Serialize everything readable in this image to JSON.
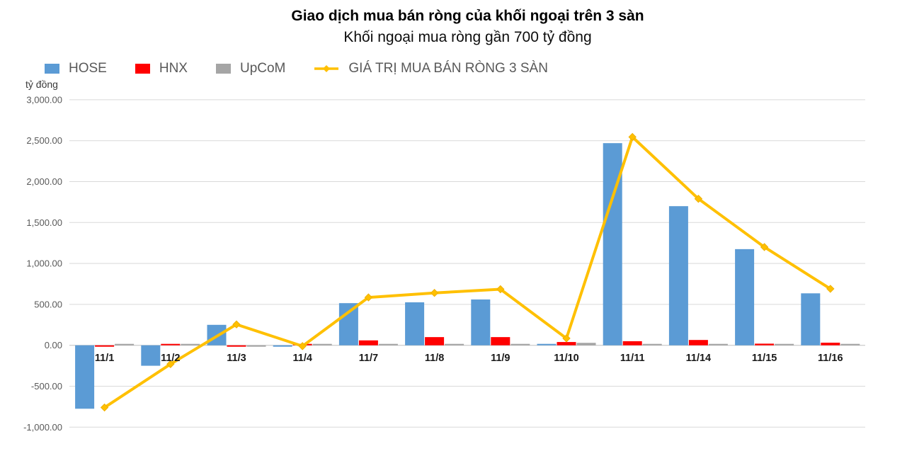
{
  "header": {
    "title": "Giao dịch mua bán ròng của khối ngoại trên 3 sàn",
    "subtitle": "Khối ngoại mua ròng gần 700 tỷ đồng"
  },
  "legend": [
    {
      "id": "hose",
      "label": "HOSE",
      "color": "#5B9BD5",
      "marker": "square"
    },
    {
      "id": "hnx",
      "label": "HNX",
      "color": "#FF0000",
      "marker": "square"
    },
    {
      "id": "upcom",
      "label": "UpCoM",
      "color": "#A5A5A5",
      "marker": "square"
    },
    {
      "id": "net-line",
      "label": "GIÁ TRỊ MUA BÁN RÒNG 3 SÀN",
      "color": "#FFC000",
      "marker": "line"
    }
  ],
  "chart_data": {
    "type": "bar+line",
    "title": "Giao dịch mua bán ròng của khối ngoại trên 3 sàn",
    "subtitle": "Khối ngoại mua ròng gần 700 tỷ đồng",
    "ylabel": "tỷ đồng",
    "categories": [
      "11/1",
      "11/2",
      "11/3",
      "11/4",
      "11/7",
      "11/8",
      "11/9",
      "11/10",
      "11/11",
      "11/14",
      "11/15",
      "11/16"
    ],
    "series": [
      {
        "name": "HOSE",
        "type": "bar",
        "color": "#5B9BD5",
        "values": [
          -775,
          -250,
          250,
          -10,
          515,
          525,
          560,
          15,
          2470,
          1700,
          1175,
          635
        ]
      },
      {
        "name": "HNX",
        "type": "bar",
        "color": "#FF0000",
        "values": [
          -5,
          5,
          -10,
          5,
          60,
          100,
          100,
          40,
          50,
          65,
          20,
          32
        ]
      },
      {
        "name": "UpCoM",
        "type": "bar",
        "color": "#A5A5A5",
        "values": [
          0,
          0,
          -3,
          0,
          5,
          5,
          5,
          30,
          8,
          5,
          3,
          5
        ]
      },
      {
        "name": "GIÁ TRỊ MUA BÁN RÒNG 3 SÀN",
        "type": "line",
        "color": "#FFC000",
        "values": [
          -760,
          -230,
          255,
          -10,
          585,
          640,
          685,
          85,
          2545,
          1790,
          1200,
          690
        ]
      }
    ],
    "ylim": [
      -1000,
      3000
    ],
    "yticks": [
      {
        "value": 3000,
        "label": "3,000.00"
      },
      {
        "value": 2500,
        "label": "2,500.00"
      },
      {
        "value": 2000,
        "label": "2,000.00"
      },
      {
        "value": 1500,
        "label": "1,500.00"
      },
      {
        "value": 1000,
        "label": "1,000.00"
      },
      {
        "value": 500,
        "label": "500.00"
      },
      {
        "value": 0,
        "label": "0.00"
      },
      {
        "value": -500,
        "label": "-500.00"
      },
      {
        "value": -1000,
        "label": "-1,000.00"
      }
    ],
    "grid": true,
    "legend_position": "top-left"
  },
  "colors": {
    "gridline": "#D9D9D9",
    "axis_line": "#BFBFBF",
    "tick_text": "#595959",
    "date_text": "#1a1a1a"
  }
}
